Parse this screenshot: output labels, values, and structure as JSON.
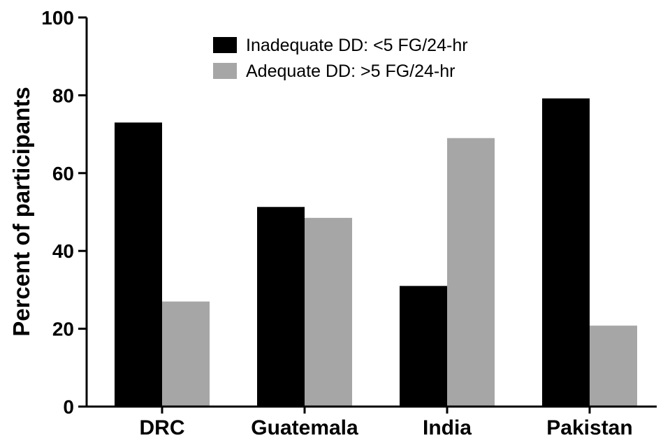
{
  "chart_data": {
    "type": "bar",
    "title": "",
    "xlabel": "",
    "ylabel": "Percent of participants",
    "ylim": [
      0,
      100
    ],
    "yticks": [
      "0",
      "20",
      "40",
      "60",
      "80",
      "100"
    ],
    "categories": [
      "DRC",
      "Guatemala",
      "India",
      "Pakistan"
    ],
    "series": [
      {
        "name": "Inadequate DD: <5 FG/24-hr",
        "color": "#000000",
        "values": [
          73,
          51.3,
          31,
          79.2
        ]
      },
      {
        "name": "Adequate DD: >5 FG/24-hr",
        "color": "#a6a6a6",
        "values": [
          27,
          48.5,
          69,
          20.8
        ]
      }
    ],
    "legend_position": "top-center",
    "grid": false
  }
}
